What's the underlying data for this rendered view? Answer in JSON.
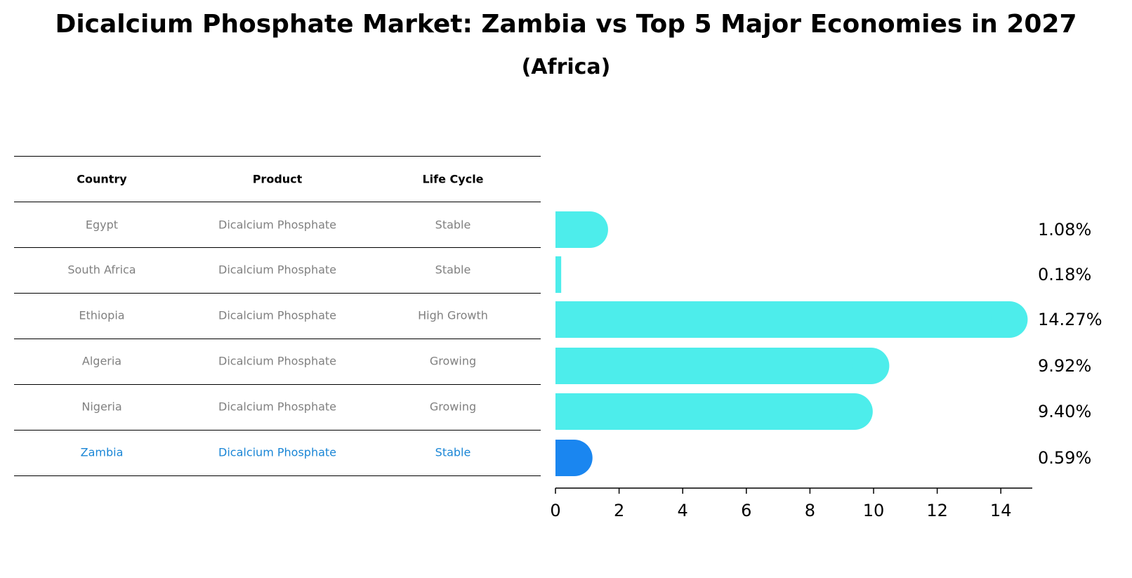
{
  "title": "Dicalcium Phosphate Market: Zambia vs Top 5 Major Economies in 2027",
  "subtitle": "(Africa)",
  "table": {
    "headers": [
      "Country",
      "Product",
      "Life Cycle"
    ],
    "rows": [
      [
        "Egypt",
        "Dicalcium Phosphate",
        "Stable"
      ],
      [
        "South Africa",
        "Dicalcium Phosphate",
        "Stable"
      ],
      [
        "Ethiopia",
        "Dicalcium Phosphate",
        "High Growth"
      ],
      [
        "Algeria",
        "Dicalcium Phosphate",
        "Growing"
      ],
      [
        "Nigeria",
        "Dicalcium Phosphate",
        "Growing"
      ],
      [
        "Zambia",
        "Dicalcium Phosphate",
        "Stable"
      ]
    ],
    "highlight_row": 5
  },
  "colors": {
    "bar": "#4dedeb",
    "highlight": "#1a86f0",
    "highlight_text": "#1a86d6",
    "muted_text": "#808080"
  },
  "chart_data": {
    "type": "bar",
    "orientation": "horizontal",
    "categories": [
      "Egypt",
      "South Africa",
      "Ethiopia",
      "Algeria",
      "Nigeria",
      "Zambia"
    ],
    "values": [
      1.08,
      0.18,
      14.27,
      9.92,
      9.4,
      0.59
    ],
    "value_labels": [
      "1.08%",
      "0.18%",
      "14.27%",
      "9.92%",
      "9.40%",
      "0.59%"
    ],
    "xlim": [
      0,
      15
    ],
    "xticks": [
      0,
      2,
      4,
      6,
      8,
      10,
      12,
      14
    ],
    "grid": false
  }
}
